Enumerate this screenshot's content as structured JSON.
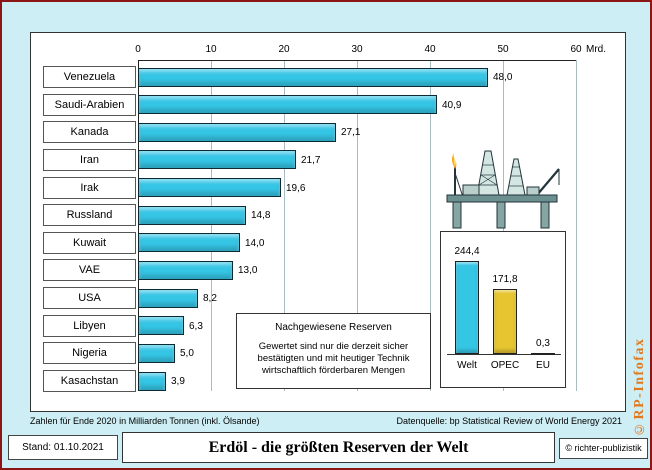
{
  "page": {
    "background_color": "#cdeef4",
    "frame_color": "#8c1616"
  },
  "chart_data": {
    "type": "bar",
    "orientation": "horizontal",
    "title": "Erdöl - die größten Reserven der Welt",
    "unit_label": "Mrd.",
    "xlim": [
      0,
      60
    ],
    "x_ticks": [
      0,
      10,
      20,
      30,
      40,
      50,
      60
    ],
    "grid": true,
    "categories": [
      "Venezuela",
      "Saudi-Arabien",
      "Kanada",
      "Iran",
      "Irak",
      "Russland",
      "Kuwait",
      "VAE",
      "USA",
      "Libyen",
      "Nigeria",
      "Kasachstan"
    ],
    "values": [
      48.0,
      40.9,
      27.1,
      21.7,
      19.6,
      14.8,
      14.0,
      13.0,
      8.2,
      6.3,
      5.0,
      3.9
    ],
    "value_labels": [
      "48,0",
      "40,9",
      "27,1",
      "21,7",
      "19,6",
      "14,8",
      "14,0",
      "13,0",
      "8,2",
      "6,3",
      "5,0",
      "3,9"
    ],
    "bar_color": "#35c5e5",
    "inset": {
      "type": "bar",
      "orientation": "vertical",
      "categories": [
        "Welt",
        "OPEC",
        "EU"
      ],
      "values": [
        244.4,
        171.8,
        0.3
      ],
      "value_labels": [
        "244,4",
        "171,8",
        "0,3"
      ],
      "bar_colors": [
        "#35c5e5",
        "#e6c530",
        "#35c5e5"
      ]
    }
  },
  "note_box": {
    "title": "Nachgewiesene Reserven",
    "lines": [
      "Gewertet sind nur die derzeit sicher",
      "bestätigten und mit heutiger Technik",
      "wirtschaftlich förderbaren Mengen"
    ]
  },
  "footnotes": {
    "left": "Zahlen für Ende 2020 in Milliarden Tonnen (inkl. Ölsande)",
    "right": "Datenquelle: bp Statistical Review of World Energy 2021"
  },
  "footer": {
    "stand": "Stand: 01.10.2021",
    "title": "Erdöl - die größten Reserven der Welt",
    "copyright": "© richter-publizistik"
  },
  "watermark": "©RP-Infofax"
}
